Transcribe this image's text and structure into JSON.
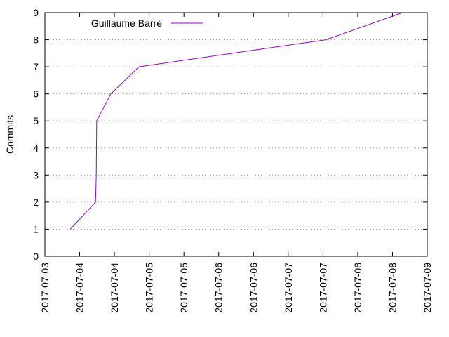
{
  "chart_data": {
    "type": "line",
    "title": "",
    "xlabel": "",
    "ylabel": "Commits",
    "ylim": [
      0,
      9
    ],
    "yticks": [
      0,
      1,
      2,
      3,
      4,
      5,
      6,
      7,
      8,
      9
    ],
    "xticks": [
      "2017-07-03",
      "2017-07-04",
      "2017-07-04",
      "2017-07-05",
      "2017-07-05",
      "2017-07-06",
      "2017-07-06",
      "2017-07-07",
      "2017-07-07",
      "2017-07-08",
      "2017-07-08",
      "2017-07-09"
    ],
    "xlim": [
      "2017-07-03 00:00",
      "2017-07-09 00:00"
    ],
    "grid": "horizontal dotted",
    "legend_position": "top-left",
    "series": [
      {
        "name": "Guillaume Barré",
        "color": "#9400d3",
        "points": [
          {
            "x": "2017-07-03 09:35",
            "y": 1
          },
          {
            "x": "2017-07-03 19:05",
            "y": 2
          },
          {
            "x": "2017-07-03 19:20",
            "y": 3
          },
          {
            "x": "2017-07-03 19:25",
            "y": 4
          },
          {
            "x": "2017-07-03 19:30",
            "y": 5
          },
          {
            "x": "2017-07-04 00:50",
            "y": 6
          },
          {
            "x": "2017-07-04 11:25",
            "y": 7
          },
          {
            "x": "2017-07-07 09:50",
            "y": 8
          },
          {
            "x": "2017-07-08 14:40",
            "y": 9
          }
        ]
      }
    ]
  }
}
